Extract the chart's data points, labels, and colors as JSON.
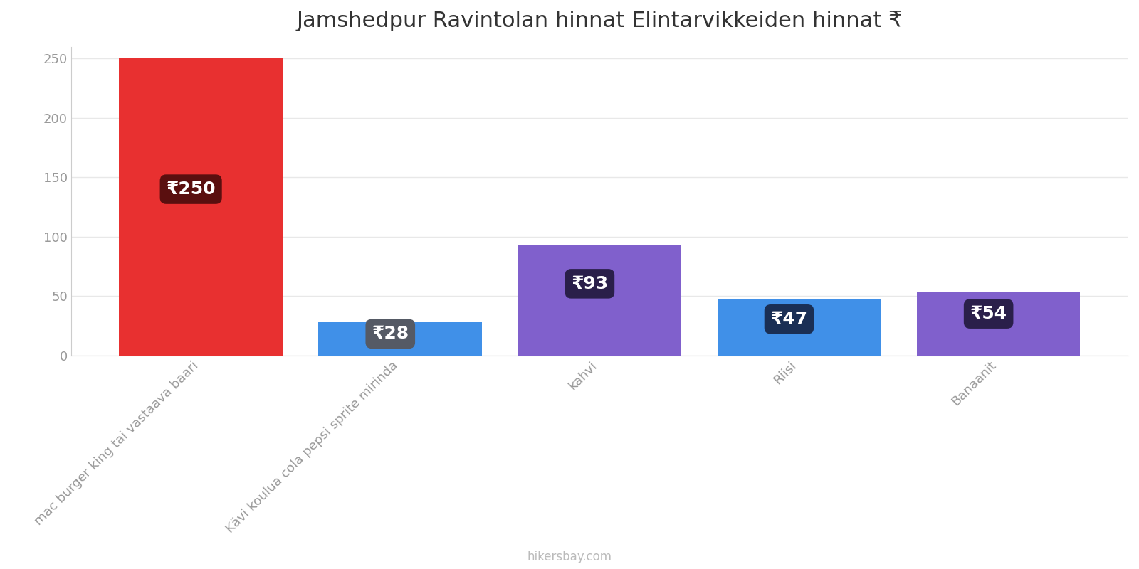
{
  "title": "Jamshedpur Ravintolan hinnat Elintarvikkeiden hinnat ₹",
  "categories": [
    "mac burger king tai vastaava baari",
    "Kävi koulua cola pepsi sprite mirinda",
    "kahvi",
    "Riisi",
    "Banaanit"
  ],
  "values": [
    250,
    28,
    93,
    47,
    54
  ],
  "bar_colors": [
    "#e83030",
    "#4090e8",
    "#8060cc",
    "#4090e8",
    "#8060cc"
  ],
  "label_box_colors": [
    "#5a0f0f",
    "#555a65",
    "#2a1f4a",
    "#1a2f55",
    "#2a1f4a"
  ],
  "label_prefix": "₹",
  "ylim": [
    0,
    260
  ],
  "yticks": [
    0,
    50,
    100,
    150,
    200,
    250
  ],
  "title_fontsize": 22,
  "tick_label_fontsize": 13,
  "value_label_fontsize": 18,
  "xlabel_rotation": 45,
  "footer_text": "hikersbay.com",
  "background_color": "#ffffff",
  "grid_color": "#e8e8e8",
  "bar_width": 0.82
}
